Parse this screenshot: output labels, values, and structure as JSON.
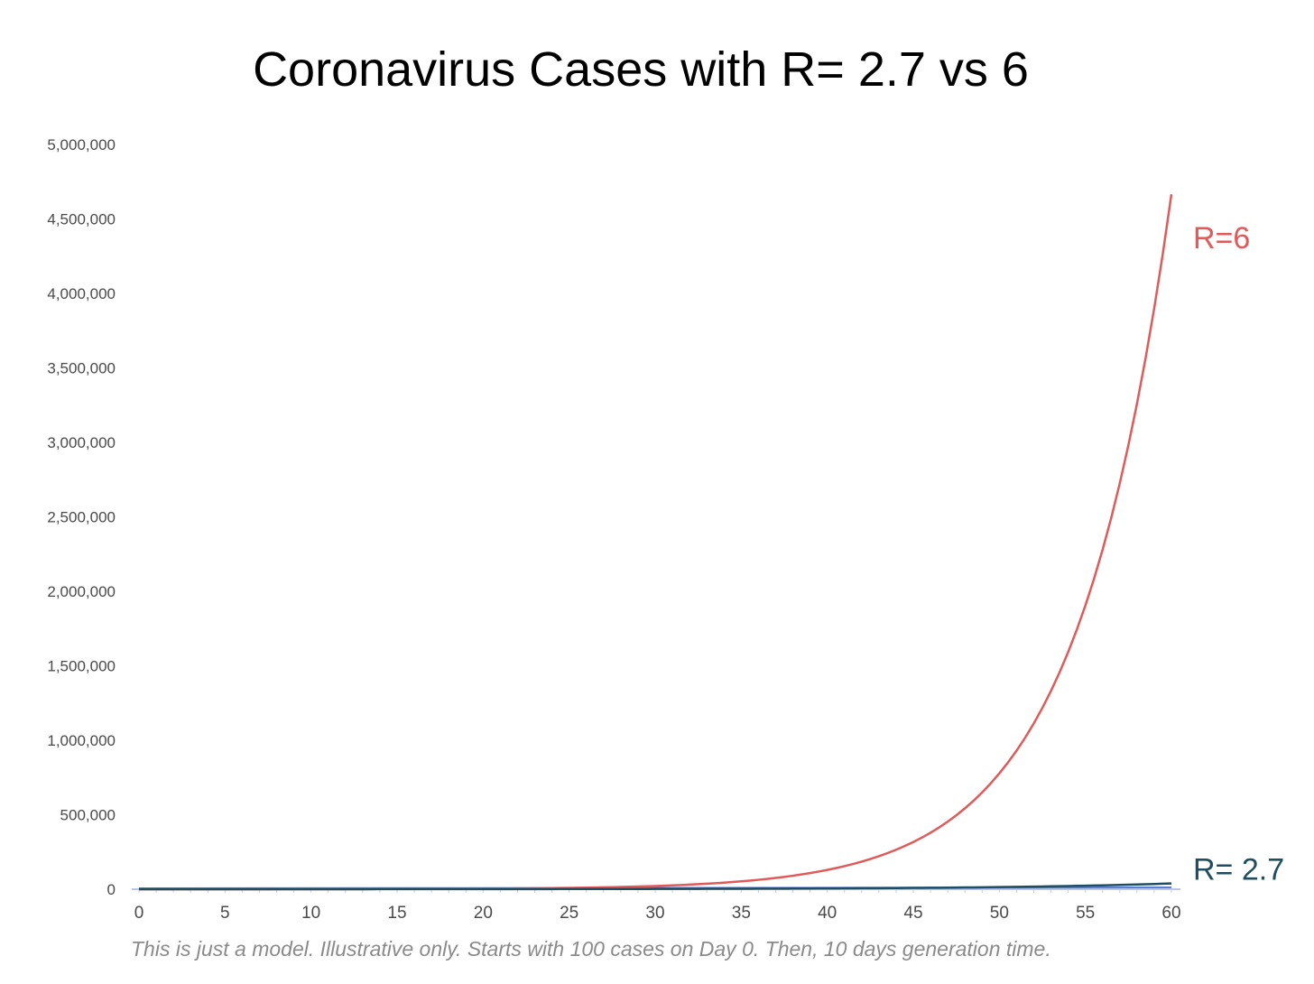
{
  "chart_data": {
    "type": "line",
    "title": "Coronavirus Cases with R= 2.7 vs 6",
    "note": "This is just a model. Illustrative only. Starts with 100 cases on Day 0. Then, 10 days generation time.",
    "xlabel": "",
    "ylabel": "",
    "xlim": [
      0,
      60
    ],
    "ylim": [
      0,
      5000000
    ],
    "x_ticks": [
      "0",
      "5",
      "10",
      "15",
      "20",
      "25",
      "30",
      "35",
      "40",
      "45",
      "50",
      "55",
      "60"
    ],
    "y_ticks": [
      "0",
      "500,000",
      "1,000,000",
      "1,500,000",
      "2,000,000",
      "2,500,000",
      "3,000,000",
      "3,500,000",
      "4,000,000",
      "4,500,000",
      "5,000,000"
    ],
    "grid": false,
    "x": [
      0,
      5,
      10,
      15,
      20,
      25,
      30,
      35,
      40,
      45,
      50,
      55,
      60
    ],
    "series": [
      {
        "name": "R=6",
        "color": "#e05a5a",
        "values": [
          100,
          245,
          600,
          1470,
          3600,
          8820,
          21600,
          52900,
          129600,
          317000,
          777600,
          1905000,
          4665600
        ]
      },
      {
        "name": "R= 2.7",
        "color": "#1f4e63",
        "values": [
          100,
          164,
          270,
          444,
          729,
          1198,
          1968,
          3234,
          5314,
          8733,
          14349,
          23578,
          38742
        ]
      }
    ],
    "faint_series_color": "#5b7fd4"
  }
}
